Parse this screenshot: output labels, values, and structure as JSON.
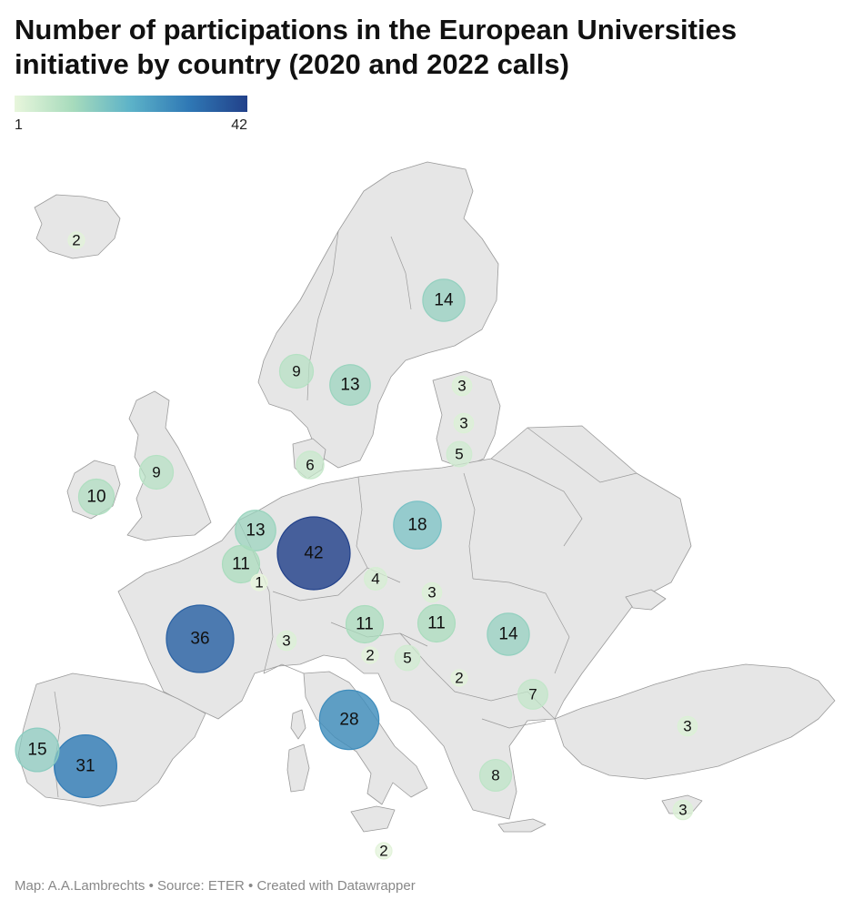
{
  "title": "Number of participations in the European Universities initiative by country (2020 and 2022 calls)",
  "legend": {
    "min": "1",
    "max": "42",
    "colors": [
      "#e8f6dc",
      "#a7dbbc",
      "#5cb2c8",
      "#2f78b5",
      "#22418a"
    ]
  },
  "footer": "Map: A.A.Lambrechts • Source: ETER • Created with Datawrapper",
  "map_data": {
    "type": "bubble-map",
    "region": "Europe",
    "scale_min": 1,
    "scale_max": 42,
    "points": [
      {
        "id": "iceland",
        "value": 2
      },
      {
        "id": "finland",
        "value": 14
      },
      {
        "id": "norway",
        "value": 9
      },
      {
        "id": "sweden",
        "value": 13
      },
      {
        "id": "estonia",
        "value": 3
      },
      {
        "id": "latvia",
        "value": 3
      },
      {
        "id": "lithuania",
        "value": 5
      },
      {
        "id": "denmark",
        "value": 6
      },
      {
        "id": "united-kingdom",
        "value": 9
      },
      {
        "id": "ireland",
        "value": 10
      },
      {
        "id": "netherlands",
        "value": 13
      },
      {
        "id": "belgium",
        "value": 11
      },
      {
        "id": "luxembourg",
        "value": 1
      },
      {
        "id": "germany",
        "value": 42
      },
      {
        "id": "poland",
        "value": 18
      },
      {
        "id": "czechia",
        "value": 4
      },
      {
        "id": "slovakia",
        "value": 3
      },
      {
        "id": "austria",
        "value": 11
      },
      {
        "id": "hungary",
        "value": 11
      },
      {
        "id": "romania",
        "value": 14
      },
      {
        "id": "france",
        "value": 36
      },
      {
        "id": "switzerland",
        "value": 3
      },
      {
        "id": "slovenia",
        "value": 2
      },
      {
        "id": "croatia",
        "value": 5
      },
      {
        "id": "serbia",
        "value": 2
      },
      {
        "id": "bulgaria",
        "value": 7
      },
      {
        "id": "italy",
        "value": 28
      },
      {
        "id": "portugal",
        "value": 15
      },
      {
        "id": "spain",
        "value": 31
      },
      {
        "id": "greece",
        "value": 8
      },
      {
        "id": "turkey",
        "value": 3
      },
      {
        "id": "cyprus",
        "value": 3
      },
      {
        "id": "malta",
        "value": 2
      }
    ]
  }
}
